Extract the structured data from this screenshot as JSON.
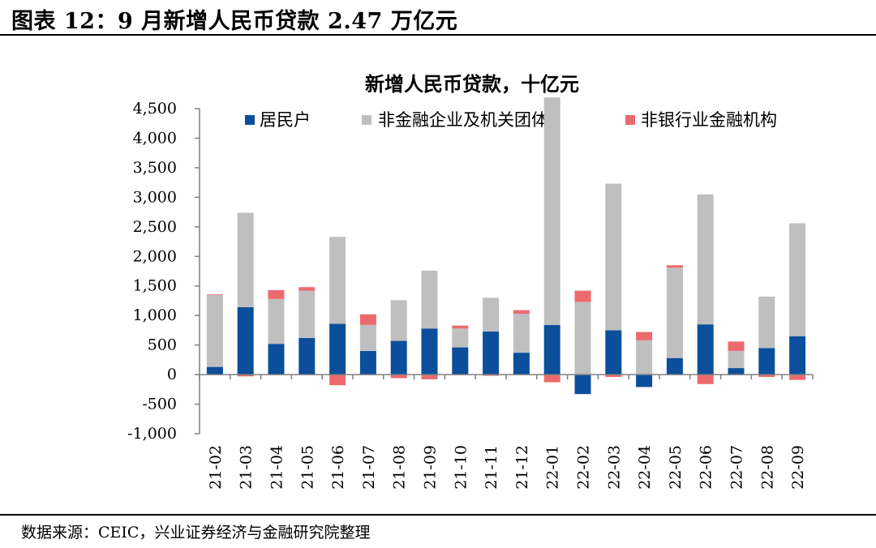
{
  "figure": {
    "title": "图表 12：9 月新增人民币贷款 2.47 万亿元",
    "source": "数据来源：CEIC，兴业证券经济与金融研究院整理"
  },
  "colors": {
    "household": "#0b4f9c",
    "corporate": "#bfbfbf",
    "nonbank": "#ec6a6e",
    "axis": "#7f7f7f"
  },
  "chart_data": {
    "type": "bar",
    "stacked": true,
    "title": "新增人民币贷款，十亿元",
    "xlabel": "",
    "ylabel": "",
    "ylim": [
      -1000,
      4500
    ],
    "yticks": [
      -1000,
      -500,
      0,
      500,
      1000,
      1500,
      2000,
      2500,
      3000,
      3500,
      4000,
      4500
    ],
    "ytick_labels": [
      "-1,000",
      "-500",
      "0",
      "500",
      "1,000",
      "1,500",
      "2,000",
      "2,500",
      "3,000",
      "3,500",
      "4,000",
      "4,500"
    ],
    "grid": false,
    "legend_position": "top",
    "categories": [
      "21-02",
      "21-03",
      "21-04",
      "21-05",
      "21-06",
      "21-07",
      "21-08",
      "21-09",
      "21-10",
      "21-11",
      "21-12",
      "22-01",
      "22-02",
      "22-03",
      "22-04",
      "22-05",
      "22-06",
      "22-07",
      "22-08",
      "22-09"
    ],
    "series": [
      {
        "name": "居民户",
        "color_key": "household",
        "values": [
          130,
          1140,
          520,
          620,
          860,
          400,
          570,
          780,
          460,
          730,
          370,
          840,
          -330,
          750,
          -210,
          280,
          850,
          110,
          450,
          650
        ]
      },
      {
        "name": "非金融企业及机关团体",
        "color_key": "corporate",
        "values": [
          1220,
          1600,
          760,
          800,
          1470,
          440,
          690,
          980,
          320,
          570,
          660,
          3850,
          1230,
          2480,
          580,
          1530,
          2200,
          290,
          870,
          1910
        ]
      },
      {
        "name": "非银行业金融机构",
        "color_key": "nonbank",
        "values": [
          10,
          -30,
          150,
          60,
          -180,
          180,
          -60,
          -80,
          50,
          -20,
          60,
          -130,
          190,
          -40,
          140,
          40,
          -160,
          160,
          -40,
          -90
        ]
      }
    ]
  }
}
